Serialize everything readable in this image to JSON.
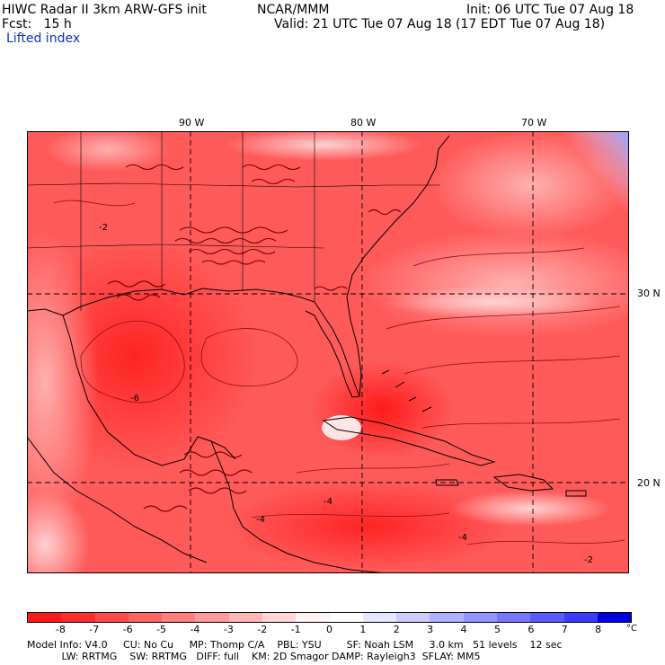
{
  "header": {
    "model_title": "HIWC Radar II 3km ARW-GFS init",
    "org": "NCAR/MMM",
    "init": "Init: 06 UTC Tue 07 Aug 18",
    "fcst": "Fcst:   15 h",
    "valid": "Valid: 21 UTC Tue 07 Aug 18 (17 EDT Tue 07 Aug 18)",
    "field": "Lifted index"
  },
  "map": {
    "lon_labels": [
      "90 W",
      "80 W",
      "70 W"
    ],
    "lat_labels": [
      "30 N",
      "20 N"
    ],
    "contour_labels": [
      "-2",
      "-4",
      "-4",
      "-2",
      "-4",
      "-6"
    ]
  },
  "colorbar": {
    "colors": [
      "#ff1a1a",
      "#ff2e2e",
      "#ff4a4a",
      "#ff6464",
      "#ff7e7e",
      "#ff9a9a",
      "#ffb6b6",
      "#ffd6d6",
      "#fff4f4",
      "#ffffff",
      "#e6e6ff",
      "#ccccff",
      "#b0b0ff",
      "#9494ff",
      "#7878ff",
      "#5a5aff",
      "#3c3cff",
      "#0000e6"
    ],
    "labels": [
      "-8",
      "-7",
      "-6",
      "-5",
      "-4",
      "-3",
      "-2",
      "-1",
      "0",
      "1",
      "2",
      "3",
      "4",
      "5",
      "6",
      "7",
      "8"
    ],
    "unit": "°C"
  },
  "footer": {
    "line1": "Model Info: V4.0     CU: No Cu     MP: Thomp C/A    PBL: YSU        SF: Noah LSM     3.0 km   51 levels    12 sec",
    "line2": "           LW: RRTMG    SW: RRTMG   DIFF: full    KM: 2D Smagor DAMP: Rayleigh3  SFLAY: MM5"
  },
  "colors": {
    "accent_blue": "#1030c8",
    "map_base": "#ff5a5a",
    "coast": "#000000",
    "grid": "#000000",
    "contour": "#7a0000"
  }
}
